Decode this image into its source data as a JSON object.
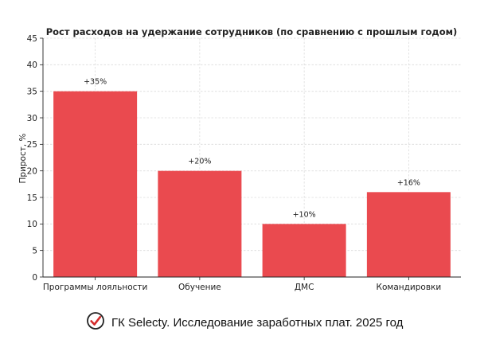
{
  "chart_data": {
    "type": "bar",
    "title": "Рост расходов на удержание сотрудников (по сравнению с прошлым годом)",
    "xlabel": "",
    "ylabel": "Прирост, %",
    "categories": [
      "Программы лояльности",
      "Обучение",
      "ДМС",
      "Командировки"
    ],
    "values": [
      35,
      20,
      10,
      16
    ],
    "data_labels": [
      "+35%",
      "+20%",
      "+10%",
      "+16%"
    ],
    "ylim": [
      0,
      45
    ],
    "yticks": [
      0,
      5,
      10,
      15,
      20,
      25,
      30,
      35,
      40,
      45
    ],
    "grid": true,
    "bar_color": "#ea4a4f"
  },
  "footer": {
    "text": "ГК Selecty. Исследование заработных плат. 2025 год",
    "icon": "check-circle-icon",
    "icon_color": "#d42b2b"
  }
}
